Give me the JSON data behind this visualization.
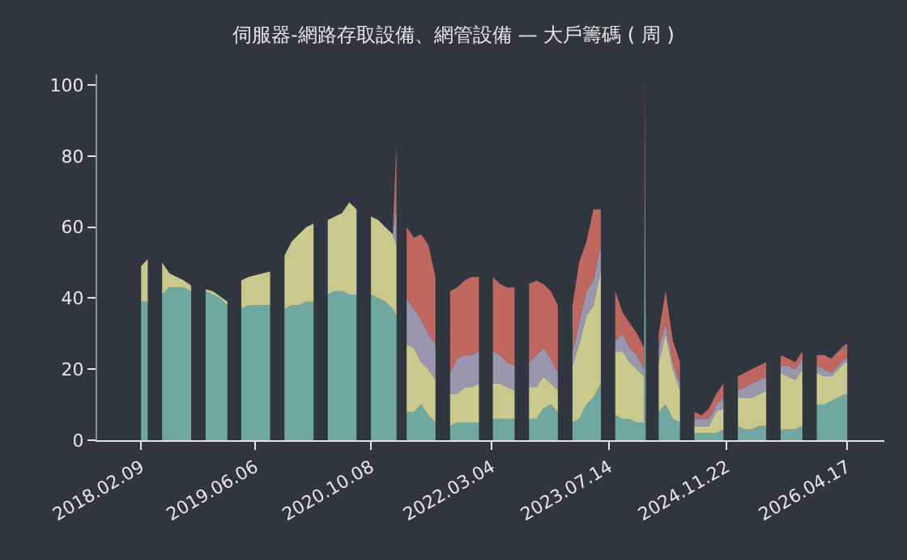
{
  "chart_data": {
    "type": "area",
    "stacked": true,
    "title": "伺服器-網路存取設備、網管設備 — 大戶籌碼 ( 周 )",
    "grid": false,
    "x": [
      "2018-02-09",
      "2018-03-09",
      "2018-04-09",
      "2018-05-09",
      "2018-06-09",
      "2018-07-09",
      "2018-08-09",
      "2018-09-09",
      "2018-10-09",
      "2018-11-09",
      "2018-12-09",
      "2019-01-09",
      "2019-02-09",
      "2019-03-09",
      "2019-04-09",
      "2019-05-09",
      "2019-06-09",
      "2019-07-09",
      "2019-08-09",
      "2019-09-09",
      "2019-10-09",
      "2019-11-09",
      "2019-12-09",
      "2020-01-09",
      "2020-02-09",
      "2020-03-09",
      "2020-04-09",
      "2020-05-09",
      "2020-06-09",
      "2020-07-09",
      "2020-08-09",
      "2020-09-09",
      "2020-10-09",
      "2020-11-09",
      "2020-12-09",
      "2021-01-09",
      "2021-01-25",
      "2021-02-09",
      "2021-03-09",
      "2021-04-09",
      "2021-05-09",
      "2021-06-09",
      "2021-07-09",
      "2021-08-09",
      "2021-09-09",
      "2021-10-09",
      "2021-11-09",
      "2021-12-09",
      "2022-01-09",
      "2022-02-09",
      "2022-03-09",
      "2022-04-09",
      "2022-05-09",
      "2022-06-09",
      "2022-07-09",
      "2022-08-09",
      "2022-09-09",
      "2022-10-09",
      "2022-11-09",
      "2022-12-09",
      "2023-01-09",
      "2023-02-09",
      "2023-03-09",
      "2023-04-09",
      "2023-05-09",
      "2023-06-09",
      "2023-07-09",
      "2023-08-09",
      "2023-09-09",
      "2023-10-09",
      "2023-11-09",
      "2023-12-09",
      "2023-12-13",
      "2023-12-16",
      "2024-01-09",
      "2024-02-09",
      "2024-03-09",
      "2024-04-09",
      "2024-05-09",
      "2024-06-09",
      "2024-07-09",
      "2024-08-09",
      "2024-09-09",
      "2024-10-09",
      "2024-11-09",
      "2024-12-09",
      "2025-01-09",
      "2025-02-09",
      "2025-03-09",
      "2025-04-09",
      "2025-05-09",
      "2025-06-09",
      "2025-07-09",
      "2025-08-09",
      "2025-09-09",
      "2025-10-09",
      "2025-11-09",
      "2025-12-09",
      "2026-01-09",
      "2026-02-09",
      "2026-03-09",
      "2026-04-09",
      "2026-04-17"
    ],
    "series": [
      {
        "color": "#6fa8a0",
        "values": [
          39,
          39,
          null,
          41,
          43,
          43,
          43,
          42,
          null,
          42,
          41,
          40,
          38,
          null,
          37,
          38,
          38,
          38,
          38,
          null,
          37,
          38,
          38,
          39,
          39,
          null,
          41,
          42,
          42,
          41,
          41,
          null,
          41,
          40,
          39,
          37,
          35,
          null,
          8,
          8,
          10,
          7,
          5,
          null,
          4,
          5,
          5,
          5,
          5,
          null,
          6,
          6,
          6,
          6,
          null,
          6,
          6,
          9,
          10,
          8,
          null,
          5,
          6,
          10,
          12,
          16,
          null,
          7,
          6,
          6,
          5,
          5,
          82,
          5,
          null,
          8,
          10,
          6,
          5,
          null,
          2,
          2,
          2,
          2,
          3,
          null,
          4,
          3,
          3,
          4,
          4,
          null,
          3,
          3,
          3,
          4,
          null,
          10,
          10,
          11,
          12,
          13,
          13
        ]
      },
      {
        "color": "#c9c98d",
        "values": [
          10,
          12,
          null,
          9,
          4,
          3,
          2,
          1.5,
          null,
          0.5,
          1,
          0.5,
          1,
          null,
          8,
          8,
          8.5,
          9,
          9.5,
          null,
          15,
          18,
          20,
          21,
          22,
          null,
          21,
          21,
          22,
          26,
          24,
          null,
          22,
          22,
          21,
          21,
          20,
          null,
          19,
          18,
          12,
          13,
          12,
          null,
          9,
          8,
          10,
          10,
          11,
          null,
          10,
          10,
          9,
          8,
          null,
          9,
          9,
          9,
          6,
          6,
          null,
          16,
          21,
          25,
          26,
          32,
          null,
          18,
          19,
          16,
          15,
          13,
          10,
          13,
          null,
          14,
          20,
          14,
          9,
          null,
          2,
          2,
          2,
          6,
          6,
          null,
          8,
          9,
          9,
          9,
          10,
          null,
          16,
          15,
          14,
          16,
          null,
          9,
          8,
          7,
          8,
          9,
          9
        ]
      },
      {
        "color": "#9a96ae",
        "values": [
          null,
          null,
          null,
          null,
          null,
          null,
          null,
          null,
          null,
          null,
          null,
          null,
          null,
          null,
          null,
          null,
          null,
          null,
          null,
          null,
          null,
          null,
          null,
          null,
          null,
          null,
          null,
          null,
          null,
          null,
          null,
          null,
          null,
          null,
          null,
          0,
          11,
          null,
          13,
          11,
          12,
          10,
          10,
          null,
          6,
          10,
          9,
          9,
          9,
          null,
          9,
          8,
          7,
          7,
          null,
          7,
          9,
          8,
          7,
          5,
          null,
          4,
          6,
          7,
          7,
          7,
          null,
          3,
          5,
          4,
          4,
          2,
          null,
          2,
          null,
          4,
          3,
          2,
          2,
          null,
          2,
          2,
          2,
          2,
          3,
          null,
          2,
          3,
          4,
          4,
          4,
          null,
          2,
          3,
          3,
          3,
          null,
          2,
          2,
          1,
          1,
          1,
          1
        ]
      },
      {
        "color": "#c0675f",
        "values": [
          null,
          null,
          null,
          null,
          null,
          null,
          null,
          null,
          null,
          null,
          null,
          null,
          null,
          null,
          null,
          null,
          null,
          null,
          null,
          null,
          null,
          null,
          null,
          null,
          null,
          null,
          null,
          null,
          null,
          null,
          null,
          null,
          null,
          null,
          null,
          0,
          18,
          null,
          20,
          20,
          24,
          25,
          19,
          null,
          23,
          20,
          21,
          22,
          21,
          null,
          21,
          20,
          21,
          22,
          null,
          22,
          21,
          18,
          19,
          19,
          null,
          13,
          17,
          14,
          20,
          10,
          null,
          14,
          6,
          7,
          6,
          6,
          10,
          6,
          null,
          4,
          9,
          6,
          6,
          null,
          2,
          1,
          3,
          3,
          4,
          null,
          4,
          4,
          4,
          4,
          4,
          null,
          3,
          2,
          2,
          2,
          null,
          3,
          4,
          4,
          4,
          4,
          4
        ]
      }
    ],
    "xlim": [
      "2017-08-07",
      "2026-09-21"
    ],
    "xticks": [
      {
        "value": "2018-02-09",
        "label": "2018.02.09"
      },
      {
        "value": "2019-06-06",
        "label": "2019.06.06"
      },
      {
        "value": "2020-10-08",
        "label": "2020.10.08"
      },
      {
        "value": "2022-03-04",
        "label": "2022.03.04"
      },
      {
        "value": "2023-07-14",
        "label": "2023.07.14"
      },
      {
        "value": "2024-11-22",
        "label": "2024.11.22"
      },
      {
        "value": "2026-04-17",
        "label": "2026.04.17"
      }
    ],
    "ylim": [
      0,
      103
    ],
    "yticks": [
      0,
      20,
      40,
      60,
      80,
      100
    ]
  }
}
